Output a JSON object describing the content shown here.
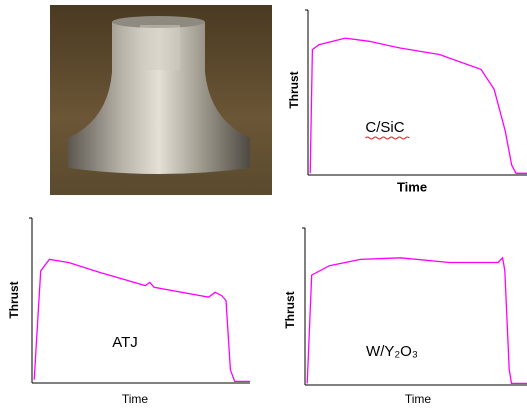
{
  "chart_data": [
    {
      "type": "line",
      "xlabel": "Time",
      "ylabel": "Thrust",
      "annotation": "C/SiC",
      "xlim": [
        0,
        100
      ],
      "ylim": [
        0,
        100
      ],
      "x": [
        1,
        2,
        5,
        17,
        28,
        42,
        60,
        79,
        85,
        90,
        93,
        95,
        100
      ],
      "series": [
        {
          "color": "#ff00ff",
          "values": [
            1,
            76,
            79,
            83,
            81,
            77,
            73,
            64,
            52,
            27,
            6,
            1,
            1
          ]
        }
      ]
    },
    {
      "type": "line",
      "xlabel": "Time",
      "ylabel": "Thrust",
      "annotation": "ATJ",
      "xlim": [
        0,
        100
      ],
      "ylim": [
        0,
        100
      ],
      "x": [
        1,
        4,
        8,
        17,
        31,
        52,
        54,
        56,
        81,
        84,
        87,
        89,
        91,
        93,
        100
      ],
      "series": [
        {
          "color": "#ff00ff",
          "values": [
            2,
            68,
            75,
            73,
            67,
            59,
            61,
            58,
            52,
            55,
            53,
            50,
            8,
            1,
            1
          ]
        }
      ]
    },
    {
      "type": "line",
      "xlabel": "Time",
      "ylabel": "Thrust",
      "annotation": "W/Y₂O₃",
      "xlim": [
        0,
        100
      ],
      "ylim": [
        0,
        100
      ],
      "x": [
        1,
        3,
        11,
        25,
        43,
        65,
        87,
        89,
        90,
        92,
        93,
        100
      ],
      "series": [
        {
          "color": "#ff00ff",
          "values": [
            1,
            70,
            76,
            80,
            81,
            78,
            78,
            81,
            73,
            10,
            1,
            1
          ]
        }
      ]
    }
  ]
}
